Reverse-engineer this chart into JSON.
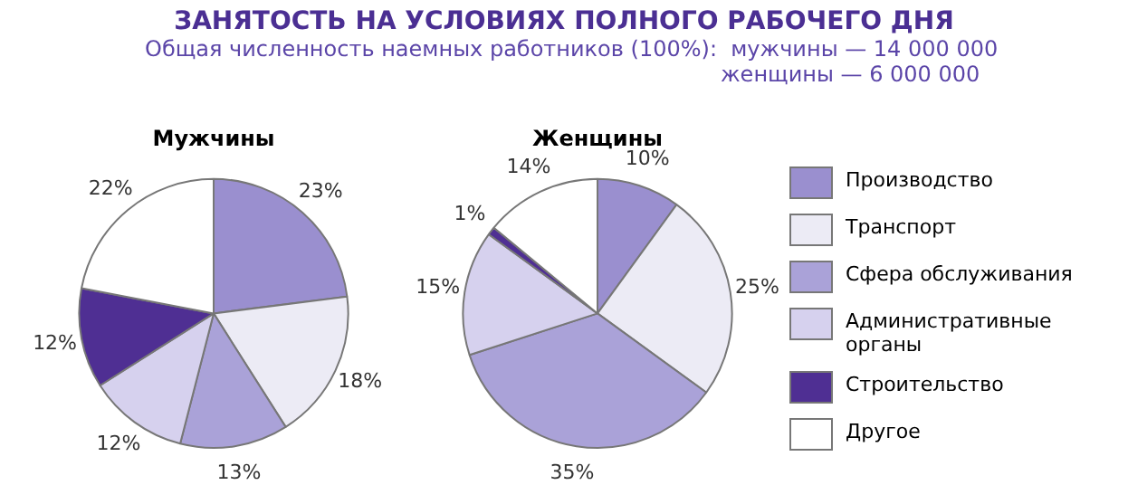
{
  "chart_data": [
    {
      "type": "pie",
      "title": "Мужчины",
      "legend": "right",
      "annotations": [
        "ЗАНЯТОСТЬ НА УСЛОВИЯХ ПОЛНОГО РАБОЧЕГО ДНЯ",
        "Общая численность наемных работников (100%):",
        "мужчины — 14 000 000",
        "женщины — 6 000 000"
      ],
      "categories": [
        "Производство",
        "Транспорт",
        "Сфера обслуживания",
        "Административные органы",
        "Строительство",
        "Другое"
      ],
      "values": [
        23,
        18,
        13,
        12,
        12,
        22
      ],
      "value_labels": [
        "23%",
        "18%",
        "13%",
        "12%",
        "12%",
        "22%"
      ],
      "colors": [
        "#9a8fcf",
        "#ecebf5",
        "#aaa2d8",
        "#d6d1ee",
        "#4f2f93",
        "#ffffff"
      ]
    },
    {
      "type": "pie",
      "title": "Женщины",
      "categories": [
        null,
        null,
        null,
        null,
        null,
        null
      ],
      "values": [
        10,
        25,
        35,
        15,
        1,
        14
      ],
      "value_labels": [
        "10%",
        "25%",
        "35%",
        "15%",
        "1%",
        "14%"
      ],
      "colors": [
        "#9a8fcf",
        "#ecebf5",
        "#aaa2d8",
        "#d6d1ee",
        "#4f2f93",
        "#ffffff"
      ]
    }
  ]
}
